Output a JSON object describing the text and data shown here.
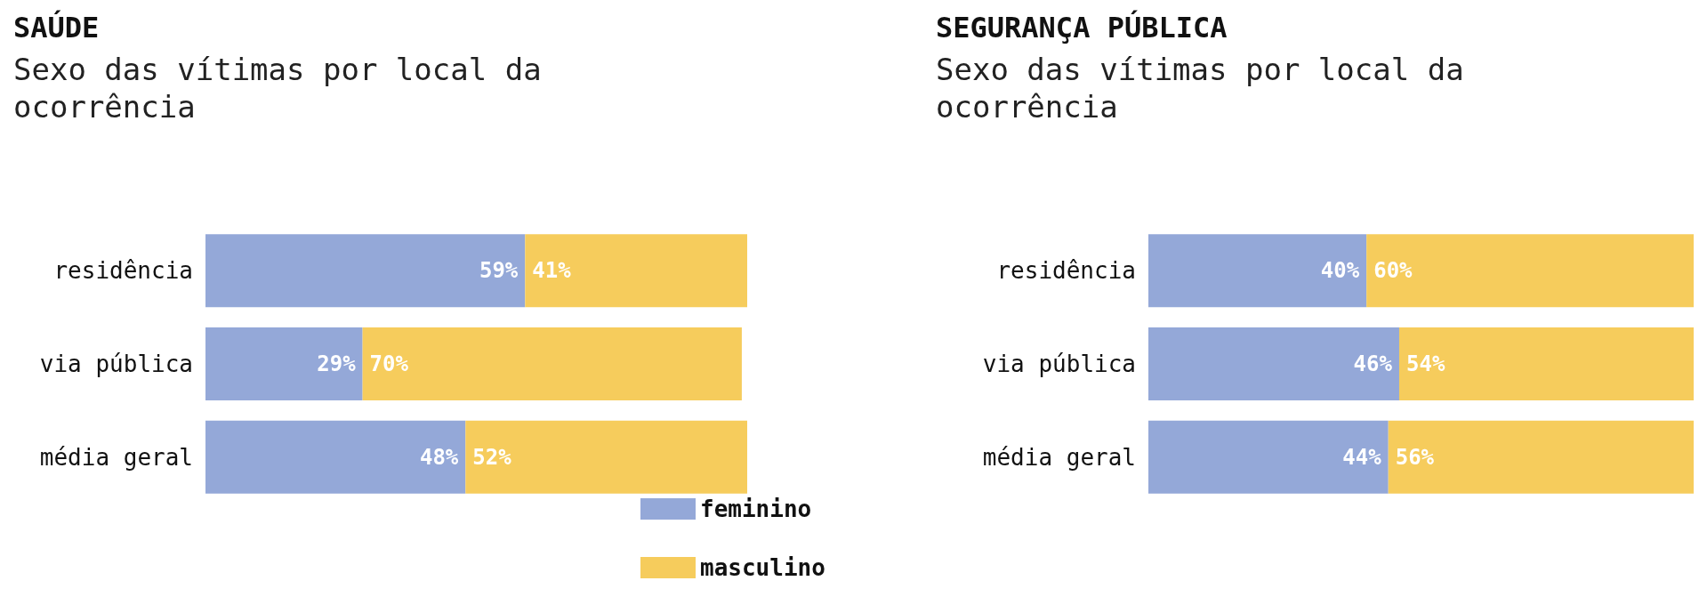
{
  "chart_data": [
    {
      "type": "bar",
      "title": "SAÚDE",
      "subtitle": "Sexo das vítimas por local da ocorrência",
      "orientation": "horizontal",
      "stacked": true,
      "categories": [
        "residência",
        "via pública",
        "média geral"
      ],
      "xlim": [
        0,
        100
      ],
      "tick_labels": "y",
      "grid": false,
      "legend": "bottom",
      "series": [
        {
          "name": "feminino",
          "color": "#94a8d8",
          "values": [
            59,
            29,
            48
          ],
          "value_labels": [
            "59%",
            "29%",
            "48%"
          ]
        },
        {
          "name": "masculino",
          "color": "#f6cc5c",
          "values": [
            41,
            70,
            52
          ],
          "value_labels": [
            "41%",
            "70%",
            "52%"
          ]
        }
      ]
    },
    {
      "type": "bar",
      "title": "SEGURANÇA PÚBLICA",
      "subtitle": "Sexo das vítimas por local da ocorrência",
      "orientation": "horizontal",
      "stacked": true,
      "categories": [
        "residência",
        "via pública",
        "média geral"
      ],
      "xlim": [
        0,
        100
      ],
      "tick_labels": "y",
      "grid": false,
      "legend": false,
      "series": [
        {
          "color": "#94a8d8",
          "values": [
            40,
            46,
            44
          ],
          "value_labels": [
            "40%",
            "46%",
            "44%"
          ]
        },
        {
          "color": "#f6cc5c",
          "values": [
            60,
            54,
            56
          ],
          "value_labels": [
            "60%",
            "54%",
            "56%"
          ]
        }
      ]
    }
  ]
}
